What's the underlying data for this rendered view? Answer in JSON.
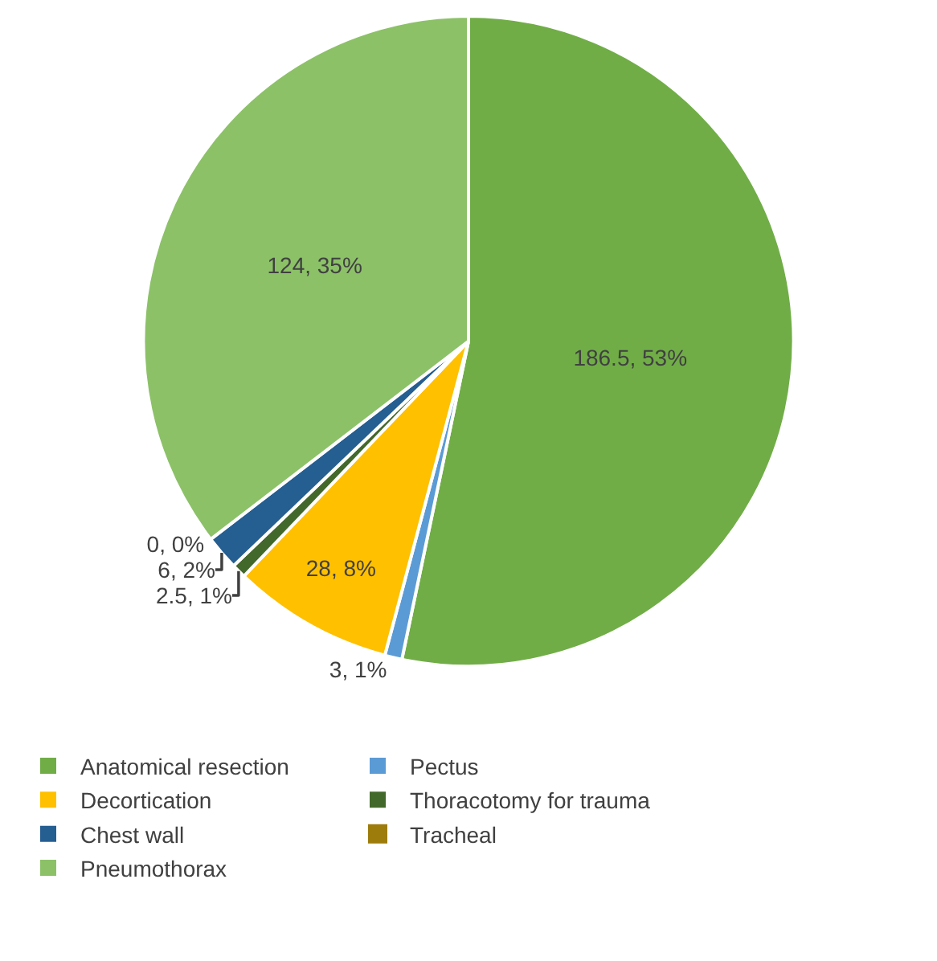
{
  "chart_data": {
    "type": "pie",
    "categories": [
      "Anatomical resection",
      "Pectus",
      "Decortication",
      "Thoracotomy for trauma",
      "Chest wall",
      "Tracheal",
      "Pneumothorax"
    ],
    "values": [
      186.5,
      3,
      28,
      2.5,
      6,
      0,
      124
    ],
    "colors": [
      "#70ad47",
      "#5b9bd5",
      "#ffc000",
      "#43682b",
      "#255e91",
      "#9e7c0c",
      "#8cc168"
    ],
    "value_labels": [
      "186.5, 53%",
      "3, 1%",
      "28, 8%",
      "2.5, 1%",
      "6, 2%",
      "0, 0%",
      "124, 35%"
    ],
    "legend": "bottom"
  }
}
